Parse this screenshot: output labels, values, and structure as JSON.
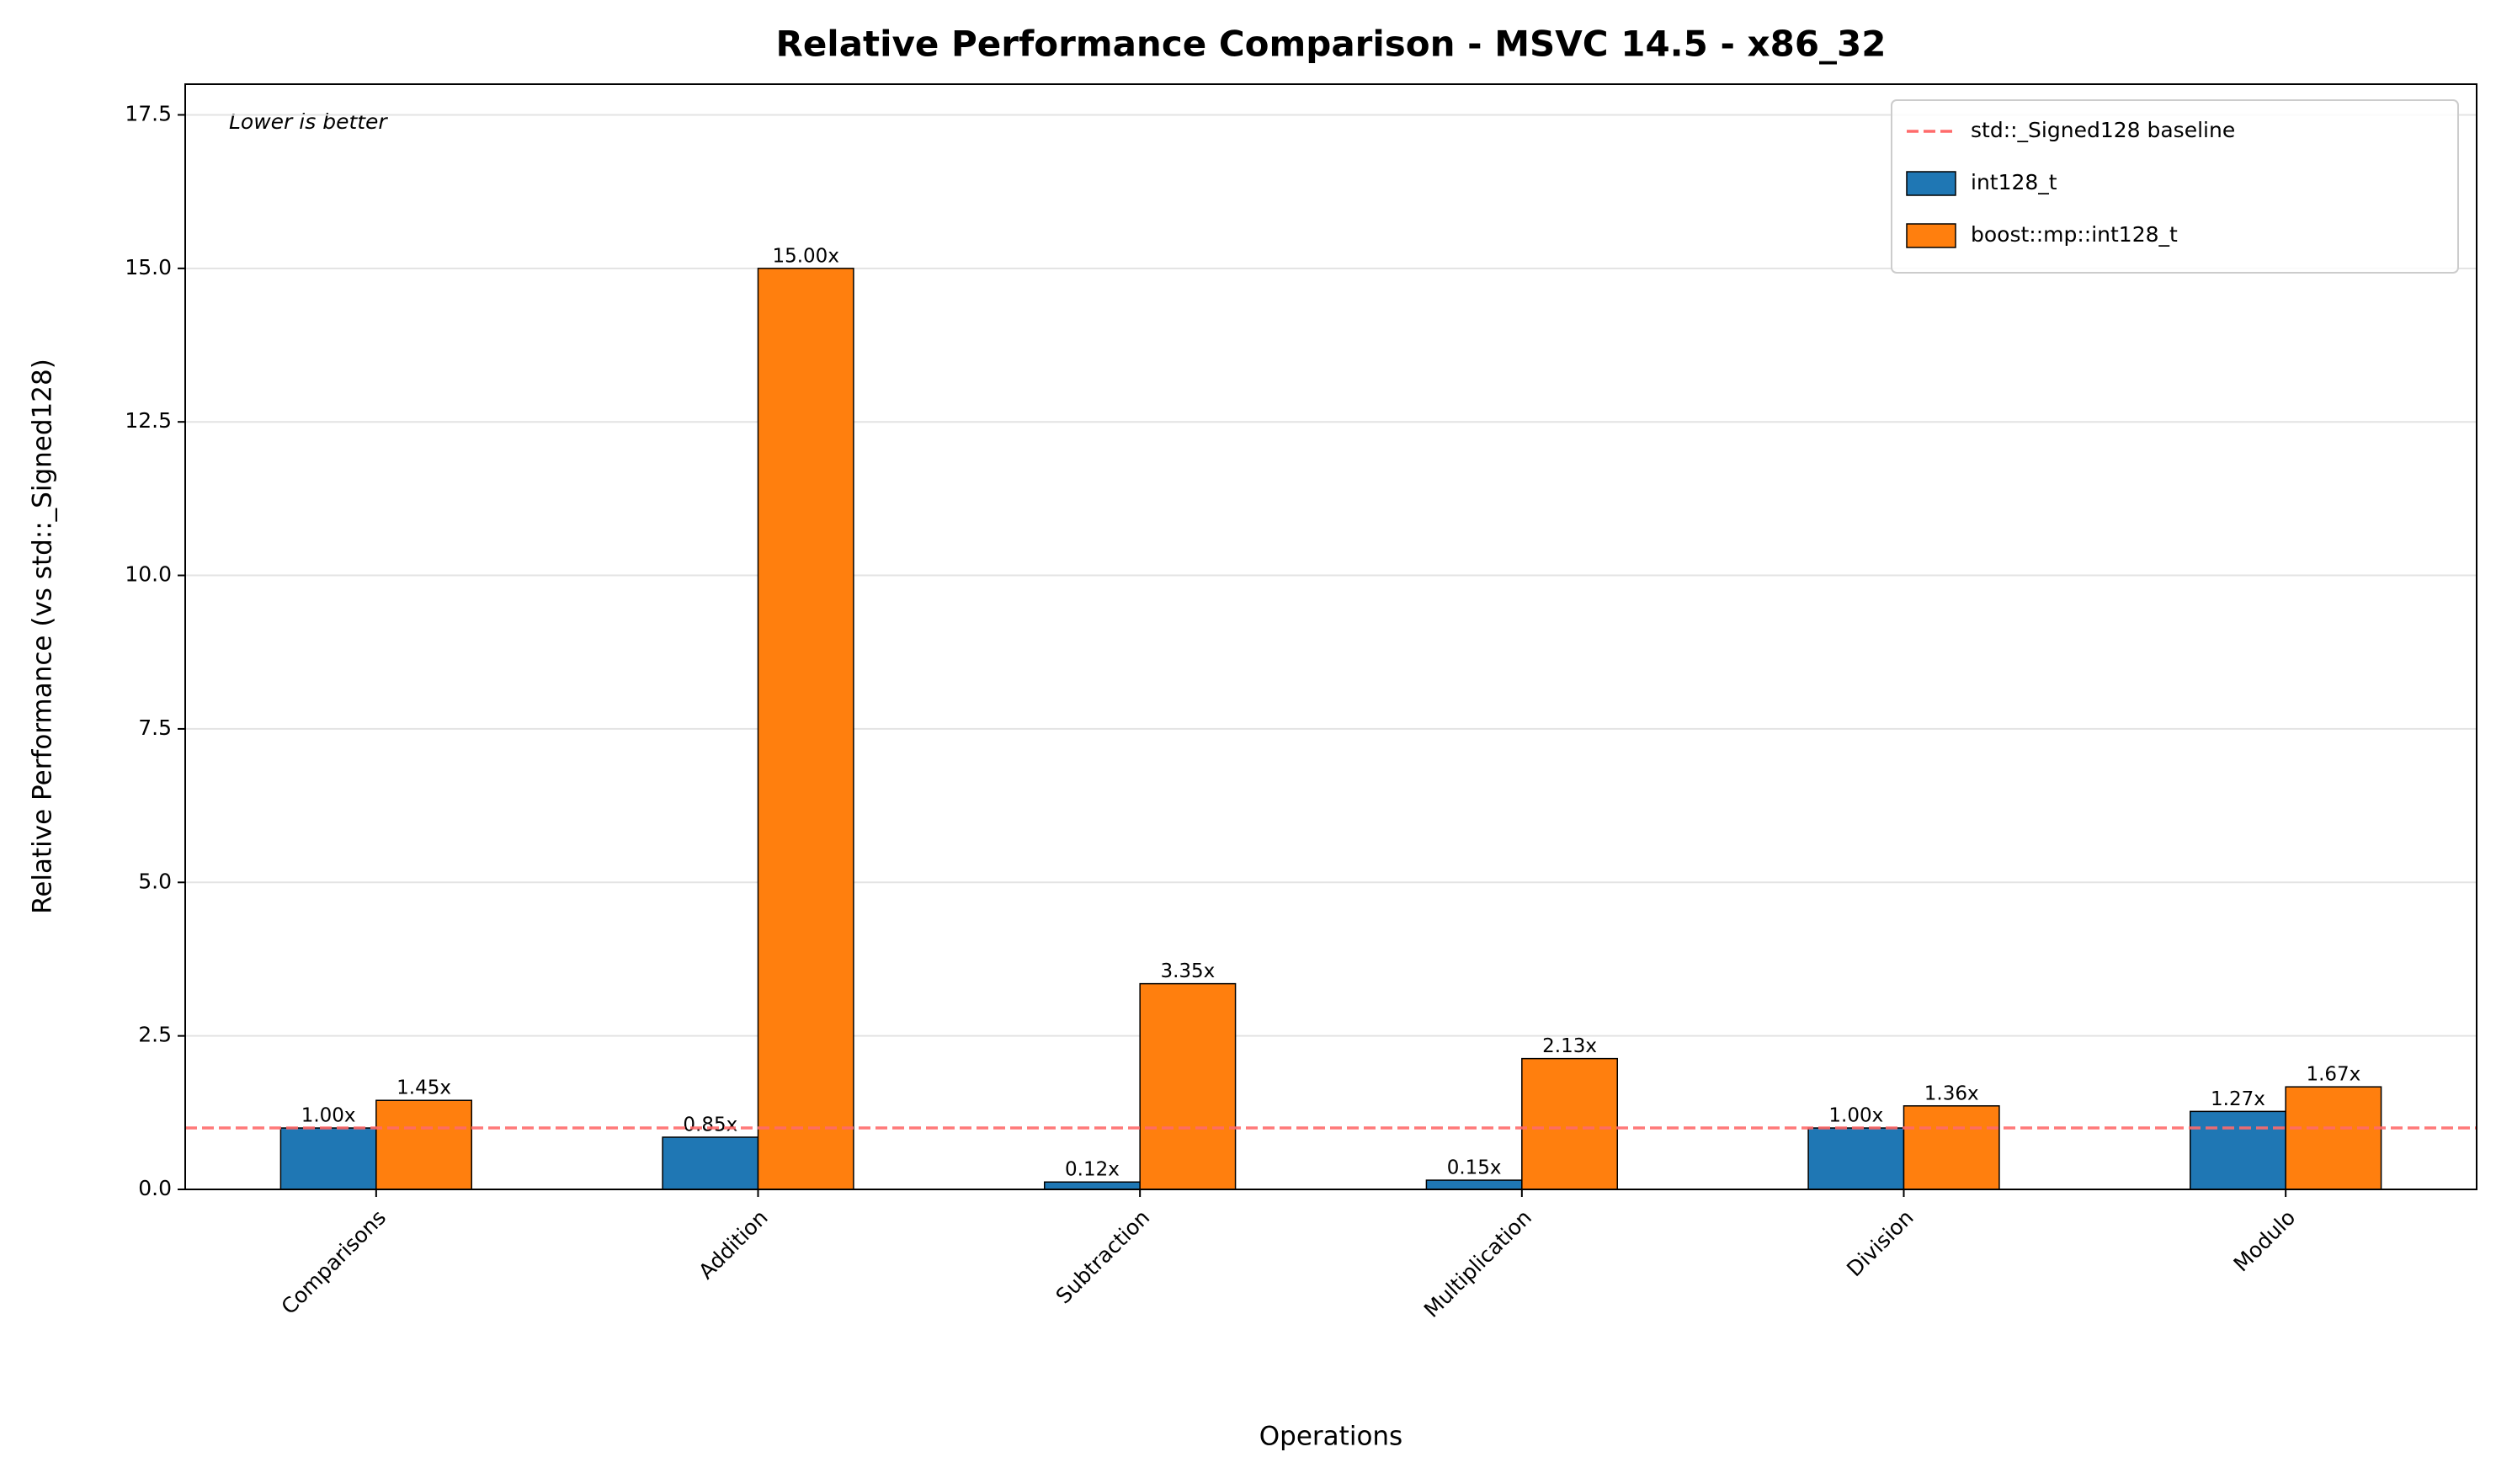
{
  "chart_data": {
    "type": "bar",
    "title": "Relative Performance Comparison - MSVC 14.5 - x86_32",
    "x_label": "Operations",
    "y_label": "Relative Performance (vs std::_Signed128)",
    "annotation": "Lower is better",
    "categories": [
      "Comparisons",
      "Addition",
      "Subtraction",
      "Multiplication",
      "Division",
      "Modulo"
    ],
    "series": [
      {
        "name": "int128_t",
        "color": "#1f77b4",
        "values": [
          1.0,
          0.85,
          0.12,
          0.15,
          1.0,
          1.27
        ],
        "value_labels": [
          "1.00x",
          "0.85x",
          "0.12x",
          "0.15x",
          "1.00x",
          "1.27x"
        ]
      },
      {
        "name": "boost::mp::int128_t",
        "color": "#ff7f0e",
        "values": [
          1.45,
          15.0,
          3.35,
          2.13,
          1.36,
          1.67
        ],
        "value_labels": [
          "1.45x",
          "15.00x",
          "3.35x",
          "2.13x",
          "1.36x",
          "1.67x"
        ]
      }
    ],
    "baseline": {
      "name": "std::_Signed128 baseline",
      "value": 1,
      "color": "#ff6b6b"
    },
    "ylim": [
      0,
      18
    ],
    "yticks": [
      {
        "value": 0,
        "label": "0.0"
      },
      2.5,
      {
        "value": 5,
        "label": "5.0"
      },
      7.5,
      {
        "value": 10,
        "label": "10.0"
      },
      12.5,
      {
        "value": 15,
        "label": "15.0"
      },
      17.5
    ],
    "grid": true,
    "legend": "upper right"
  }
}
